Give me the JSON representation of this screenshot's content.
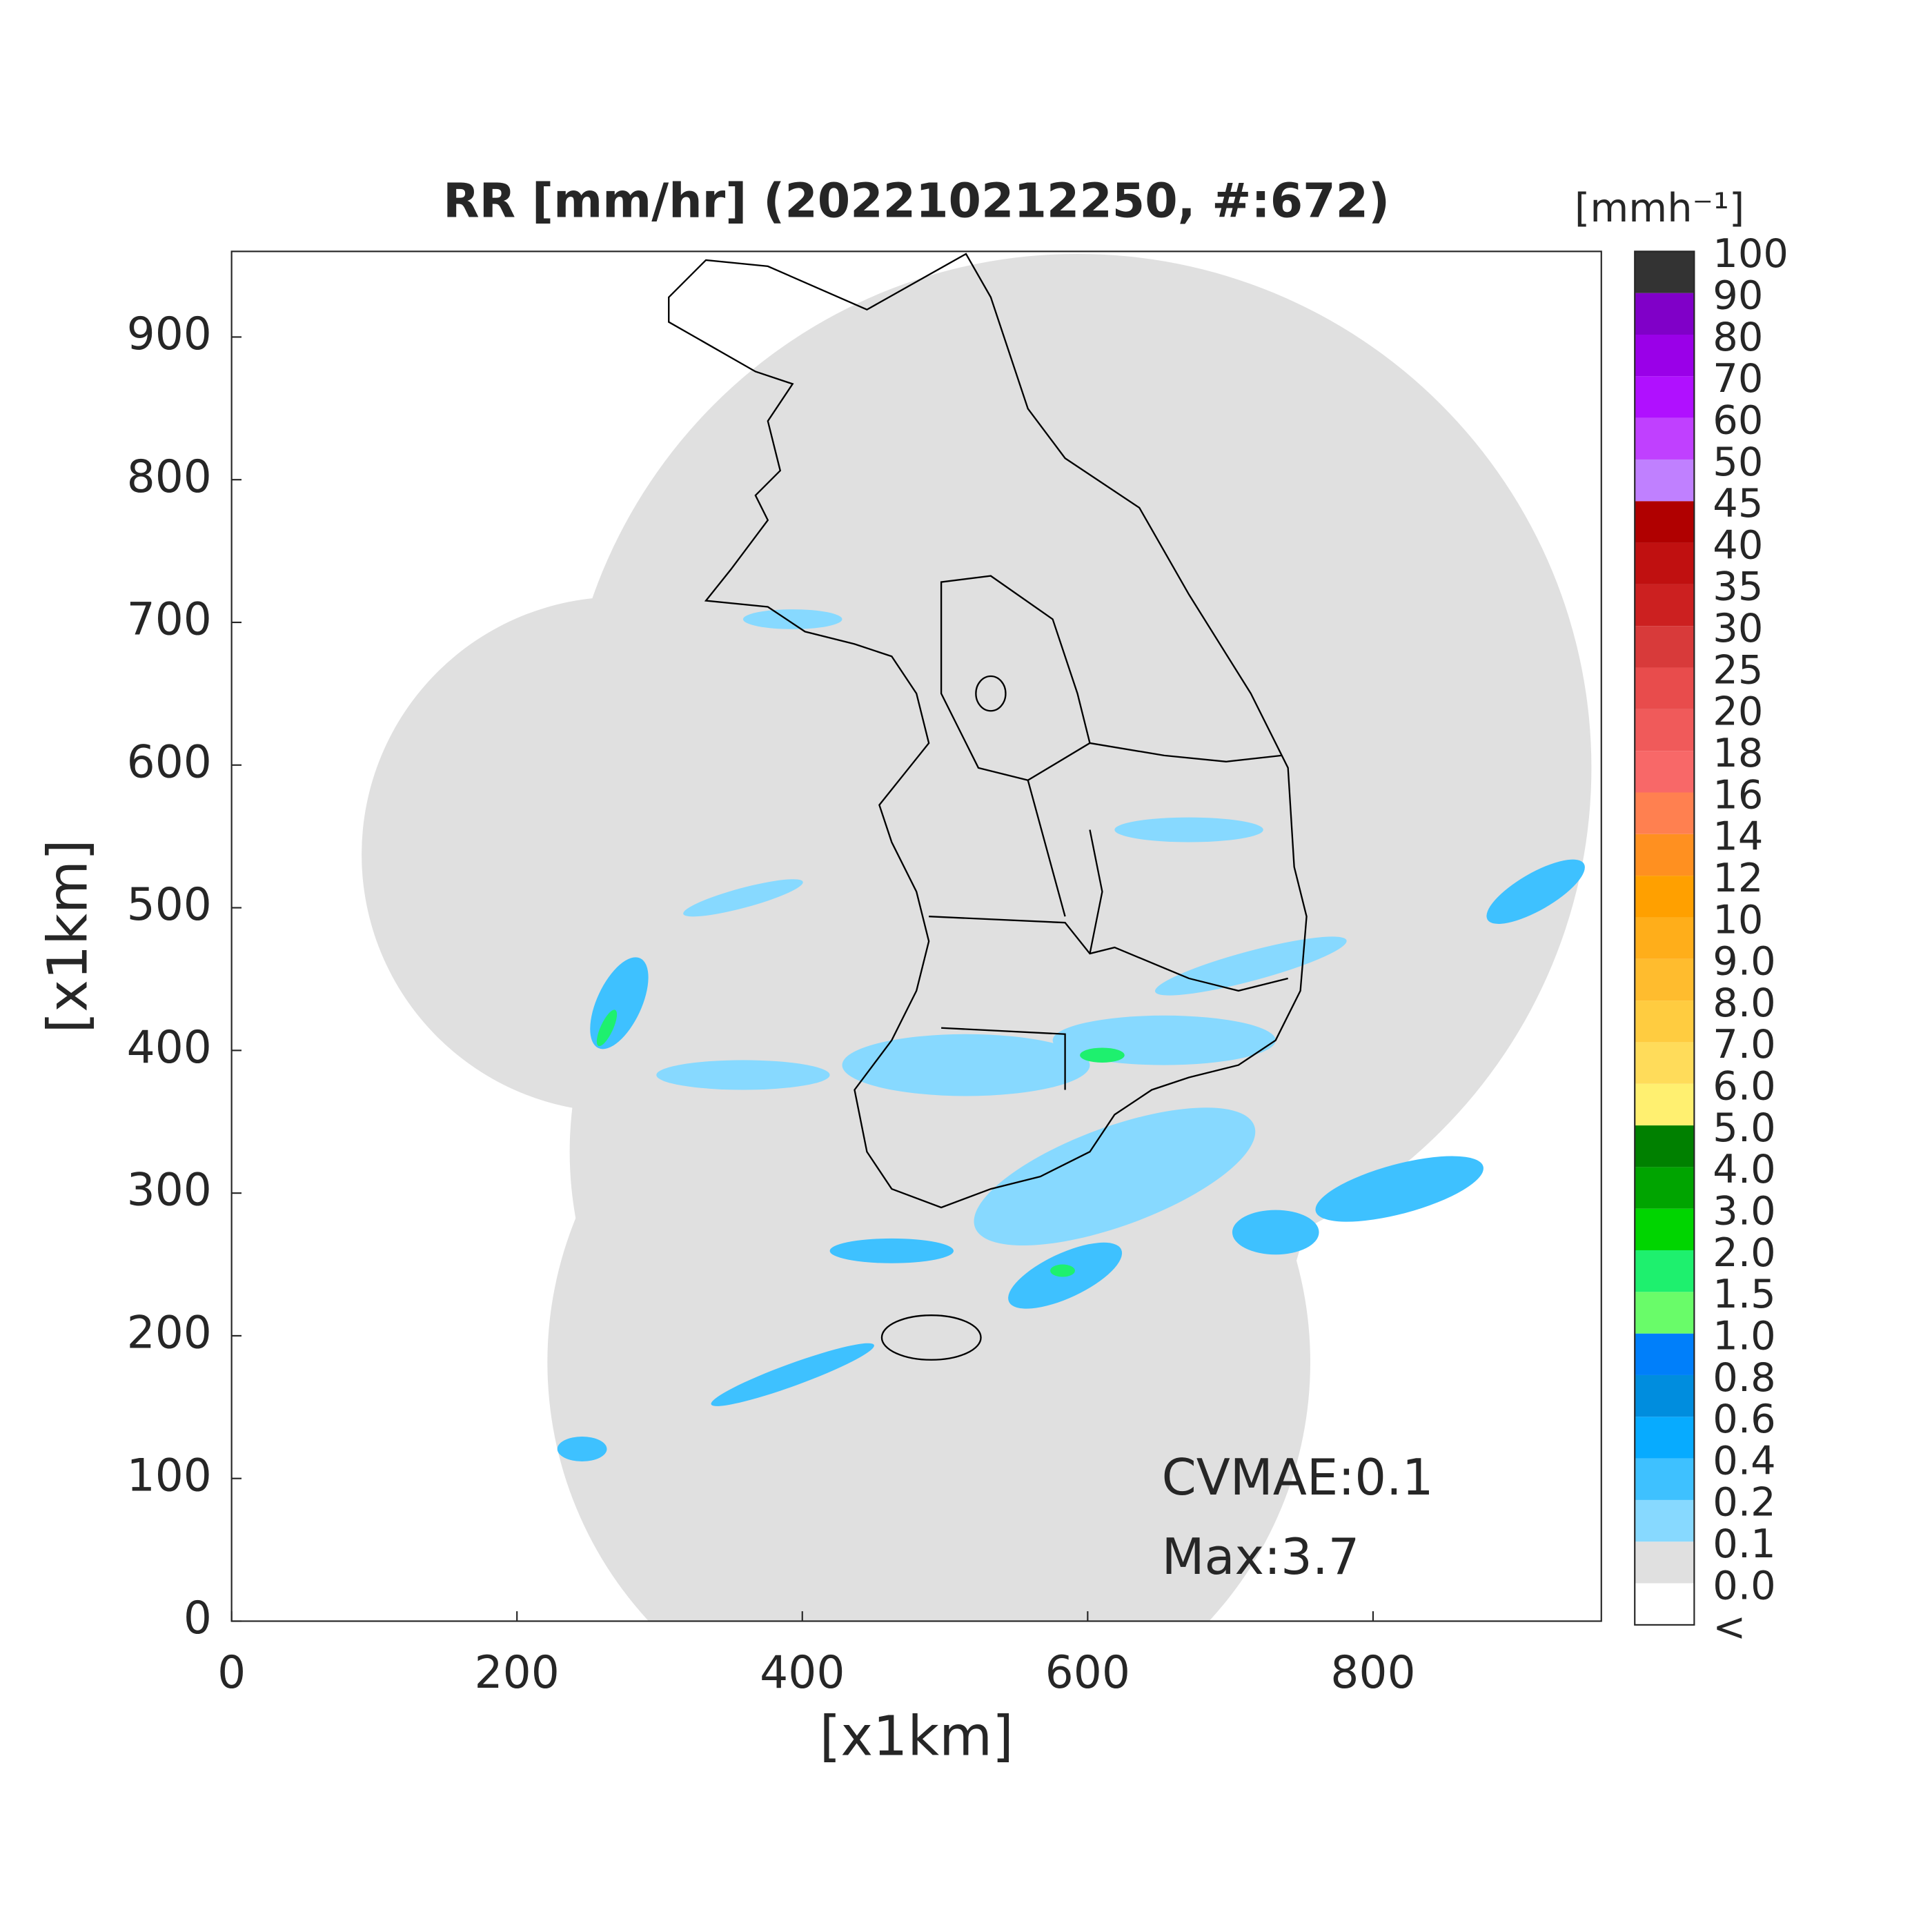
{
  "chart_data": {
    "type": "map",
    "title": "RR [mm/hr] (202210212250, #:672)",
    "x_label": "[x1km]",
    "y_label": "[x1km]",
    "xlim": [
      0,
      960
    ],
    "ylim": [
      0,
      960
    ],
    "xticks": [
      0,
      200,
      400,
      600,
      800
    ],
    "yticks": [
      0,
      100,
      200,
      300,
      400,
      500,
      600,
      700,
      800,
      900
    ],
    "annotations": [
      "CVMAE:0.1",
      "Max:3.7"
    ],
    "colorbar": {
      "title": "[mmh⁻¹]",
      "labels": [
        "<",
        "0.0",
        "0.1",
        "0.2",
        "0.4",
        "0.6",
        "0.8",
        "1.0",
        "1.5",
        "2.0",
        "3.0",
        "4.0",
        "5.0",
        "6.0",
        "7.0",
        "8.0",
        "9.0",
        "10",
        "12",
        "14",
        "16",
        "18",
        "20",
        "25",
        "30",
        "35",
        "40",
        "45",
        "50",
        "60",
        "70",
        "80",
        "90",
        "100"
      ],
      "colors": [
        "#ffffff",
        "#e0e0e0",
        "#87d9ff",
        "#3ec1ff",
        "#07abff",
        "#008dde",
        "#007ffa",
        "#69fc69",
        "#1ef06e",
        "#00d500",
        "#00a400",
        "#008000",
        "#fff070",
        "#ffdc5a",
        "#ffcc40",
        "#ffbc2e",
        "#ffae1a",
        "#ffa000",
        "#ff9020",
        "#ff8050",
        "#f86868",
        "#f05a5a",
        "#e84c4c",
        "#d83a3a",
        "#cc2020",
        "#c01010",
        "#b00000",
        "#c080ff",
        "#c040ff",
        "#b010ff",
        "#9a00e8",
        "#8000c8",
        "#333333"
      ]
    }
  }
}
